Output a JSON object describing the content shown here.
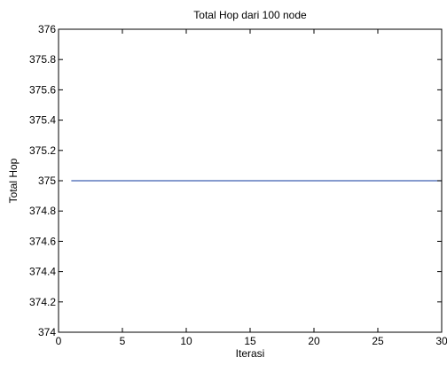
{
  "chart_data": {
    "type": "line",
    "title": "Total Hop dari 100 node",
    "xlabel": "Iterasi",
    "ylabel": "Total Hop",
    "xlim": [
      0,
      30
    ],
    "ylim": [
      374,
      376
    ],
    "x_ticks": [
      0,
      5,
      10,
      15,
      20,
      25,
      30
    ],
    "x_tick_labels": [
      "0",
      "5",
      "10",
      "15",
      "20",
      "25",
      "30"
    ],
    "y_ticks": [
      374,
      374.2,
      374.4,
      374.6,
      374.8,
      375,
      375.2,
      375.4,
      375.6,
      375.8,
      376
    ],
    "y_tick_labels": [
      "374",
      "374.2",
      "374.4",
      "374.6",
      "374.8",
      "375",
      "375.2",
      "375.4",
      "375.6",
      "375.8",
      "376"
    ],
    "grid": false,
    "series": [
      {
        "color": "#3f5fb0",
        "x": [
          1,
          2,
          3,
          4,
          5,
          6,
          7,
          8,
          9,
          10,
          11,
          12,
          13,
          14,
          15,
          16,
          17,
          18,
          19,
          20,
          21,
          22,
          23,
          24,
          25,
          26,
          27,
          28,
          29,
          30
        ],
        "values": [
          375,
          375,
          375,
          375,
          375,
          375,
          375,
          375,
          375,
          375,
          375,
          375,
          375,
          375,
          375,
          375,
          375,
          375,
          375,
          375,
          375,
          375,
          375,
          375,
          375,
          375,
          375,
          375,
          375,
          375
        ]
      }
    ]
  }
}
